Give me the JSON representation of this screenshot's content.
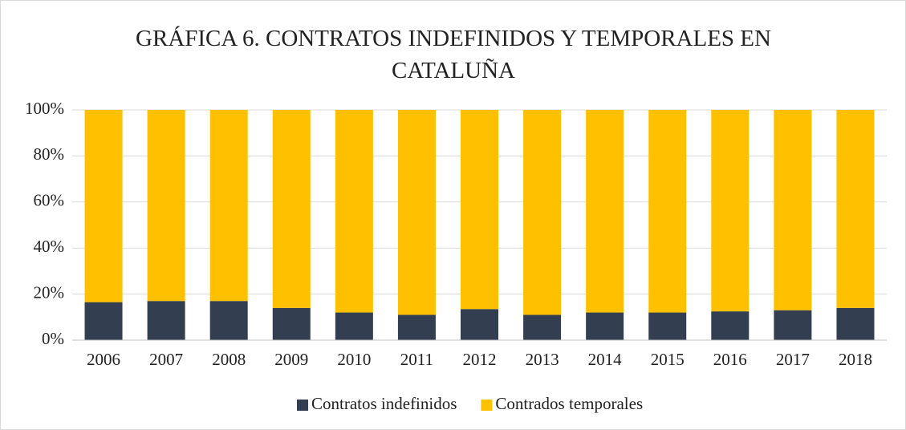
{
  "chart_data": {
    "type": "stacked_bar",
    "title": "GRÁFICA 6. CONTRATOS INDEFINIDOS Y TEMPORALES EN CATALUÑA",
    "categories": [
      "2006",
      "2007",
      "2008",
      "2009",
      "2010",
      "2011",
      "2012",
      "2013",
      "2014",
      "2015",
      "2016",
      "2017",
      "2018"
    ],
    "series": [
      {
        "name": "Contratos indefinidos",
        "color": "#333f50",
        "values": [
          16.5,
          17,
          17,
          14,
          12,
          11,
          13.5,
          11,
          12,
          12,
          12.5,
          13,
          14
        ]
      },
      {
        "name": "Contrados temporales",
        "color": "#ffc000",
        "values": [
          83.5,
          83,
          83,
          86,
          88,
          89,
          86.5,
          89,
          88,
          88,
          87.5,
          87,
          86
        ]
      }
    ],
    "ylim": [
      0,
      100
    ],
    "yticks": [
      {
        "value": 0,
        "label": "0%"
      },
      {
        "value": 20,
        "label": "20%"
      },
      {
        "value": 40,
        "label": "40%"
      },
      {
        "value": 60,
        "label": "60%"
      },
      {
        "value": 80,
        "label": "80%"
      },
      {
        "value": 100,
        "label": "100%"
      }
    ],
    "grid": true,
    "legend": "bottom"
  }
}
